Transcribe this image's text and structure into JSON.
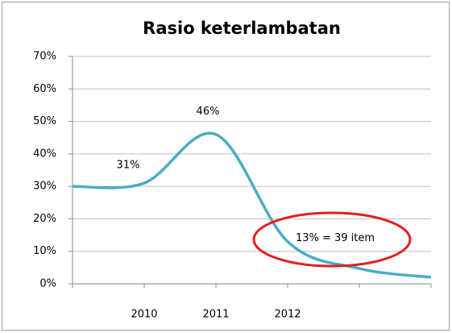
{
  "chart_data": {
    "type": "line",
    "title": "Rasio keterlambatan",
    "categories": [
      null,
      "2010",
      "2011",
      "2012",
      null,
      null
    ],
    "values": [
      30,
      31,
      46,
      13,
      4.7,
      2
    ],
    "value_labels": [
      null,
      "31%",
      "46%",
      "13% = 39 item",
      null,
      null
    ],
    "color": "#4bacc6",
    "smooth": true,
    "ylim": [
      0,
      70
    ],
    "yticks": [
      {
        "value": 0,
        "label": "0%"
      },
      {
        "value": 10,
        "label": "10%"
      },
      {
        "value": 20,
        "label": "20%"
      },
      {
        "value": 30,
        "label": "30%"
      },
      {
        "value": 40,
        "label": "40%"
      },
      {
        "value": 50,
        "label": "50%"
      },
      {
        "value": 60,
        "label": "60%"
      },
      {
        "value": 70,
        "label": "70%"
      }
    ],
    "grid": true
  }
}
